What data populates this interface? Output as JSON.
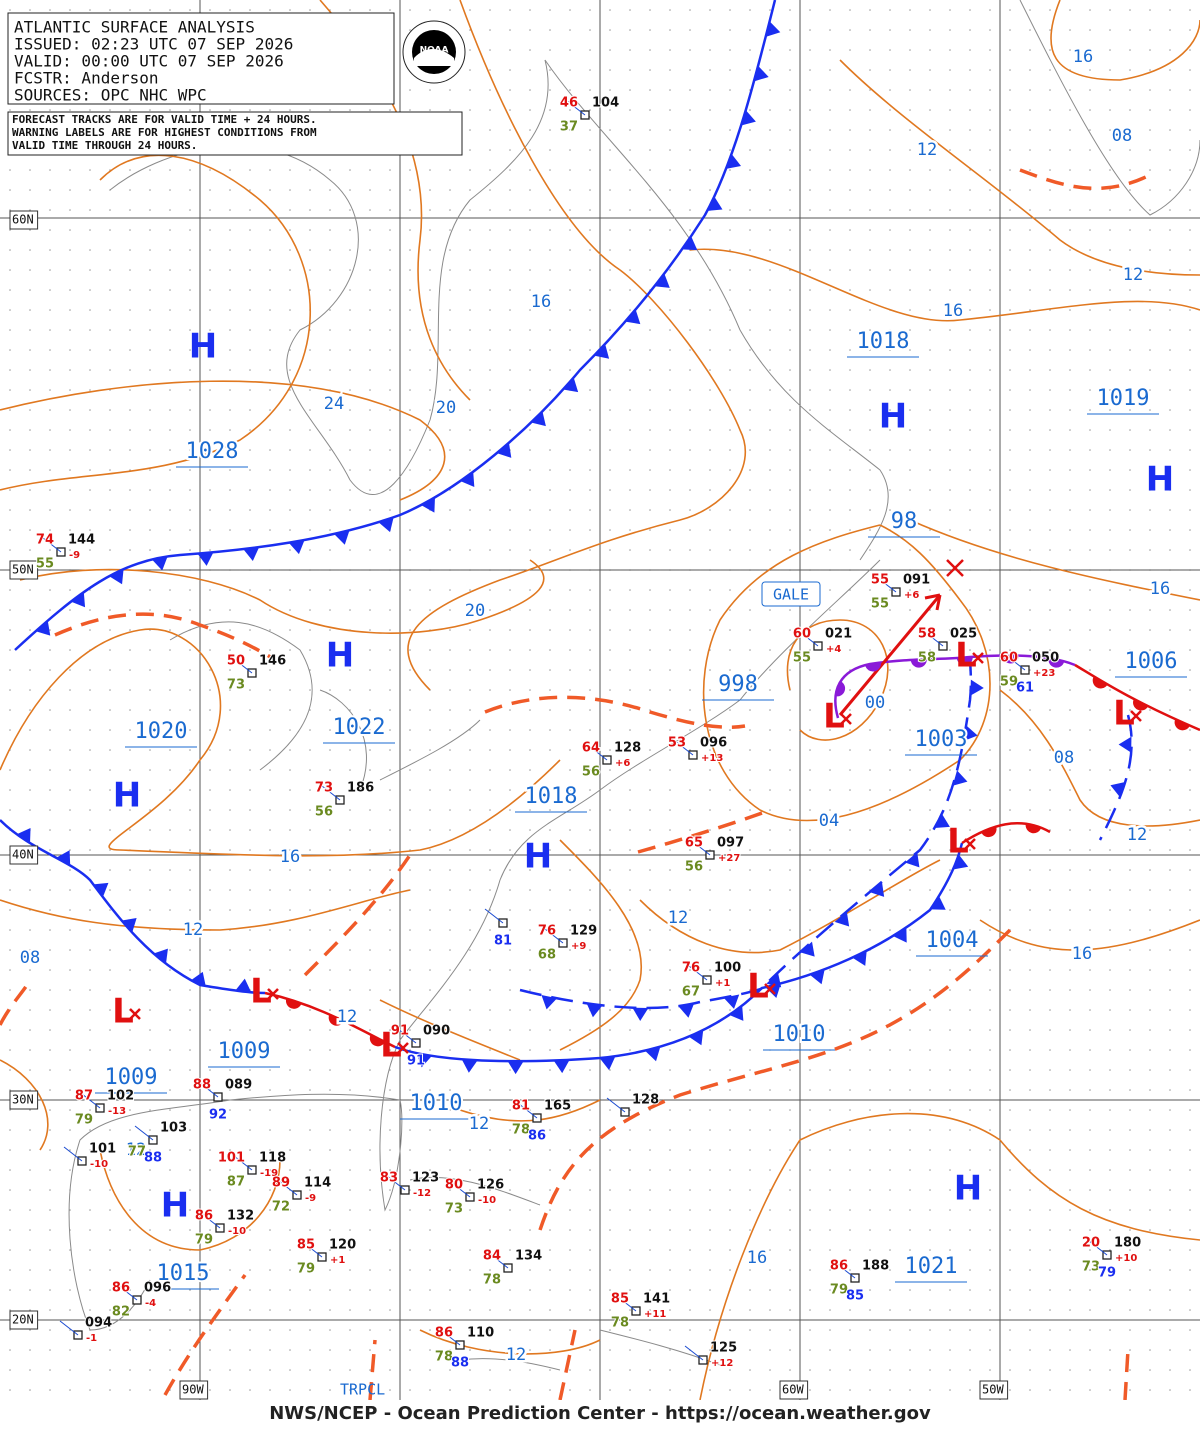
{
  "header": {
    "lines": [
      "ATLANTIC SURFACE ANALYSIS",
      "ISSUED: 02:23 UTC 07 SEP 2026",
      "VALID:  00:00 UTC 07 SEP 2026",
      "FCSTR:  Anderson",
      "SOURCES: OPC NHC WPC"
    ]
  },
  "note": {
    "lines": [
      "FORECAST TRACKS ARE FOR VALID TIME + 24 HOURS.",
      "WARNING LABELS ARE FOR HIGHEST CONDITIONS FROM",
      "VALID TIME THROUGH 24 HOURS."
    ]
  },
  "logo": "NOAA",
  "lat_labels": [
    "60N",
    "50N",
    "40N",
    "30N",
    "20N"
  ],
  "lon_labels": [
    "90W",
    "60W",
    "50W"
  ],
  "tropical_label": "TRPCL",
  "warning": "GALE",
  "highs": [
    "H",
    "H",
    "H",
    "H",
    "H",
    "H",
    "H",
    "H"
  ],
  "lows": [
    "L",
    "L",
    "L",
    "L",
    "L",
    "L",
    "L",
    "L"
  ],
  "pressures": [
    1028,
    1020,
    1022,
    1018,
    1019,
    1018,
    998,
    1003,
    1006,
    1004,
    1010,
    1009,
    1009,
    1010,
    1015,
    1021,
    98
  ],
  "isobar_labels": [
    "24",
    "20",
    "16",
    "16",
    "08",
    "12",
    "12",
    "16",
    "20",
    "16",
    "12",
    "08",
    "12",
    "12",
    "04",
    "00",
    "08",
    "12",
    "16",
    "16",
    "16",
    "12",
    "12",
    "12"
  ],
  "stations": [
    {
      "t": "46",
      "p": "104",
      "d": "37"
    },
    {
      "t": "74",
      "p": "144",
      "c": "-9",
      "d": "55"
    },
    {
      "t": "50",
      "p": "146",
      "d": "73"
    },
    {
      "t": "73",
      "p": "186",
      "d": "56"
    },
    {
      "t": "64",
      "p": "128",
      "c": "+6",
      "d": "56"
    },
    {
      "t": "53",
      "p": "096",
      "c": "+13"
    },
    {
      "t": "65",
      "p": "097",
      "c": "+27",
      "d": "56"
    },
    {
      "t": "60",
      "p": "021",
      "c": "+4",
      "d": "55"
    },
    {
      "t": "55",
      "p": "091",
      "c": "+6",
      "d": "55"
    },
    {
      "t": "58",
      "p": "025",
      "d": "58"
    },
    {
      "t": "60",
      "p": "050",
      "c": "+23",
      "d": "59",
      "s": "61"
    },
    {
      "t": "76",
      "p": "129",
      "c": "+9",
      "d": "68"
    },
    {
      "s": "81"
    },
    {
      "t": "76",
      "p": "100",
      "c": "+1",
      "d": "67"
    },
    {
      "t": "91",
      "p": "090",
      "s": "91"
    },
    {
      "t": "81",
      "p": "165",
      "d": "78",
      "s": "86"
    },
    {
      "p": "128"
    },
    {
      "t": "87",
      "p": "102",
      "c": "-13",
      "d": "79"
    },
    {
      "t": "88",
      "p": "089",
      "s": "92"
    },
    {
      "p": "101",
      "c": "-10"
    },
    {
      "p": "103",
      "d": "77",
      "s": "88"
    },
    {
      "t": "101",
      "p": "118",
      "c": "-19",
      "d": "87"
    },
    {
      "t": "89",
      "p": "114",
      "c": "-9",
      "d": "72"
    },
    {
      "t": "86",
      "p": "132",
      "c": "-10",
      "d": "79"
    },
    {
      "t": "85",
      "p": "120",
      "c": "+1",
      "d": "79"
    },
    {
      "t": "83",
      "p": "123",
      "c": "-12"
    },
    {
      "t": "80",
      "p": "126",
      "c": "-10",
      "d": "73"
    },
    {
      "t": "84",
      "p": "134",
      "d": "78"
    },
    {
      "t": "85",
      "p": "141",
      "c": "+11",
      "d": "78"
    },
    {
      "t": "86",
      "p": "110",
      "d": "78",
      "s": "88"
    },
    {
      "p": "125",
      "c": "+12"
    },
    {
      "t": "86",
      "p": "188",
      "d": "79",
      "s": "85"
    },
    {
      "t": "20",
      "p": "180",
      "c": "+10",
      "d": "73",
      "s": "79"
    },
    {
      "t": "86",
      "p": "096",
      "c": "-4",
      "d": "82"
    },
    {
      "p": "094",
      "c": "-1"
    }
  ],
  "footer": "NWS/NCEP - Ocean Prediction Center - https://ocean.weather.gov"
}
